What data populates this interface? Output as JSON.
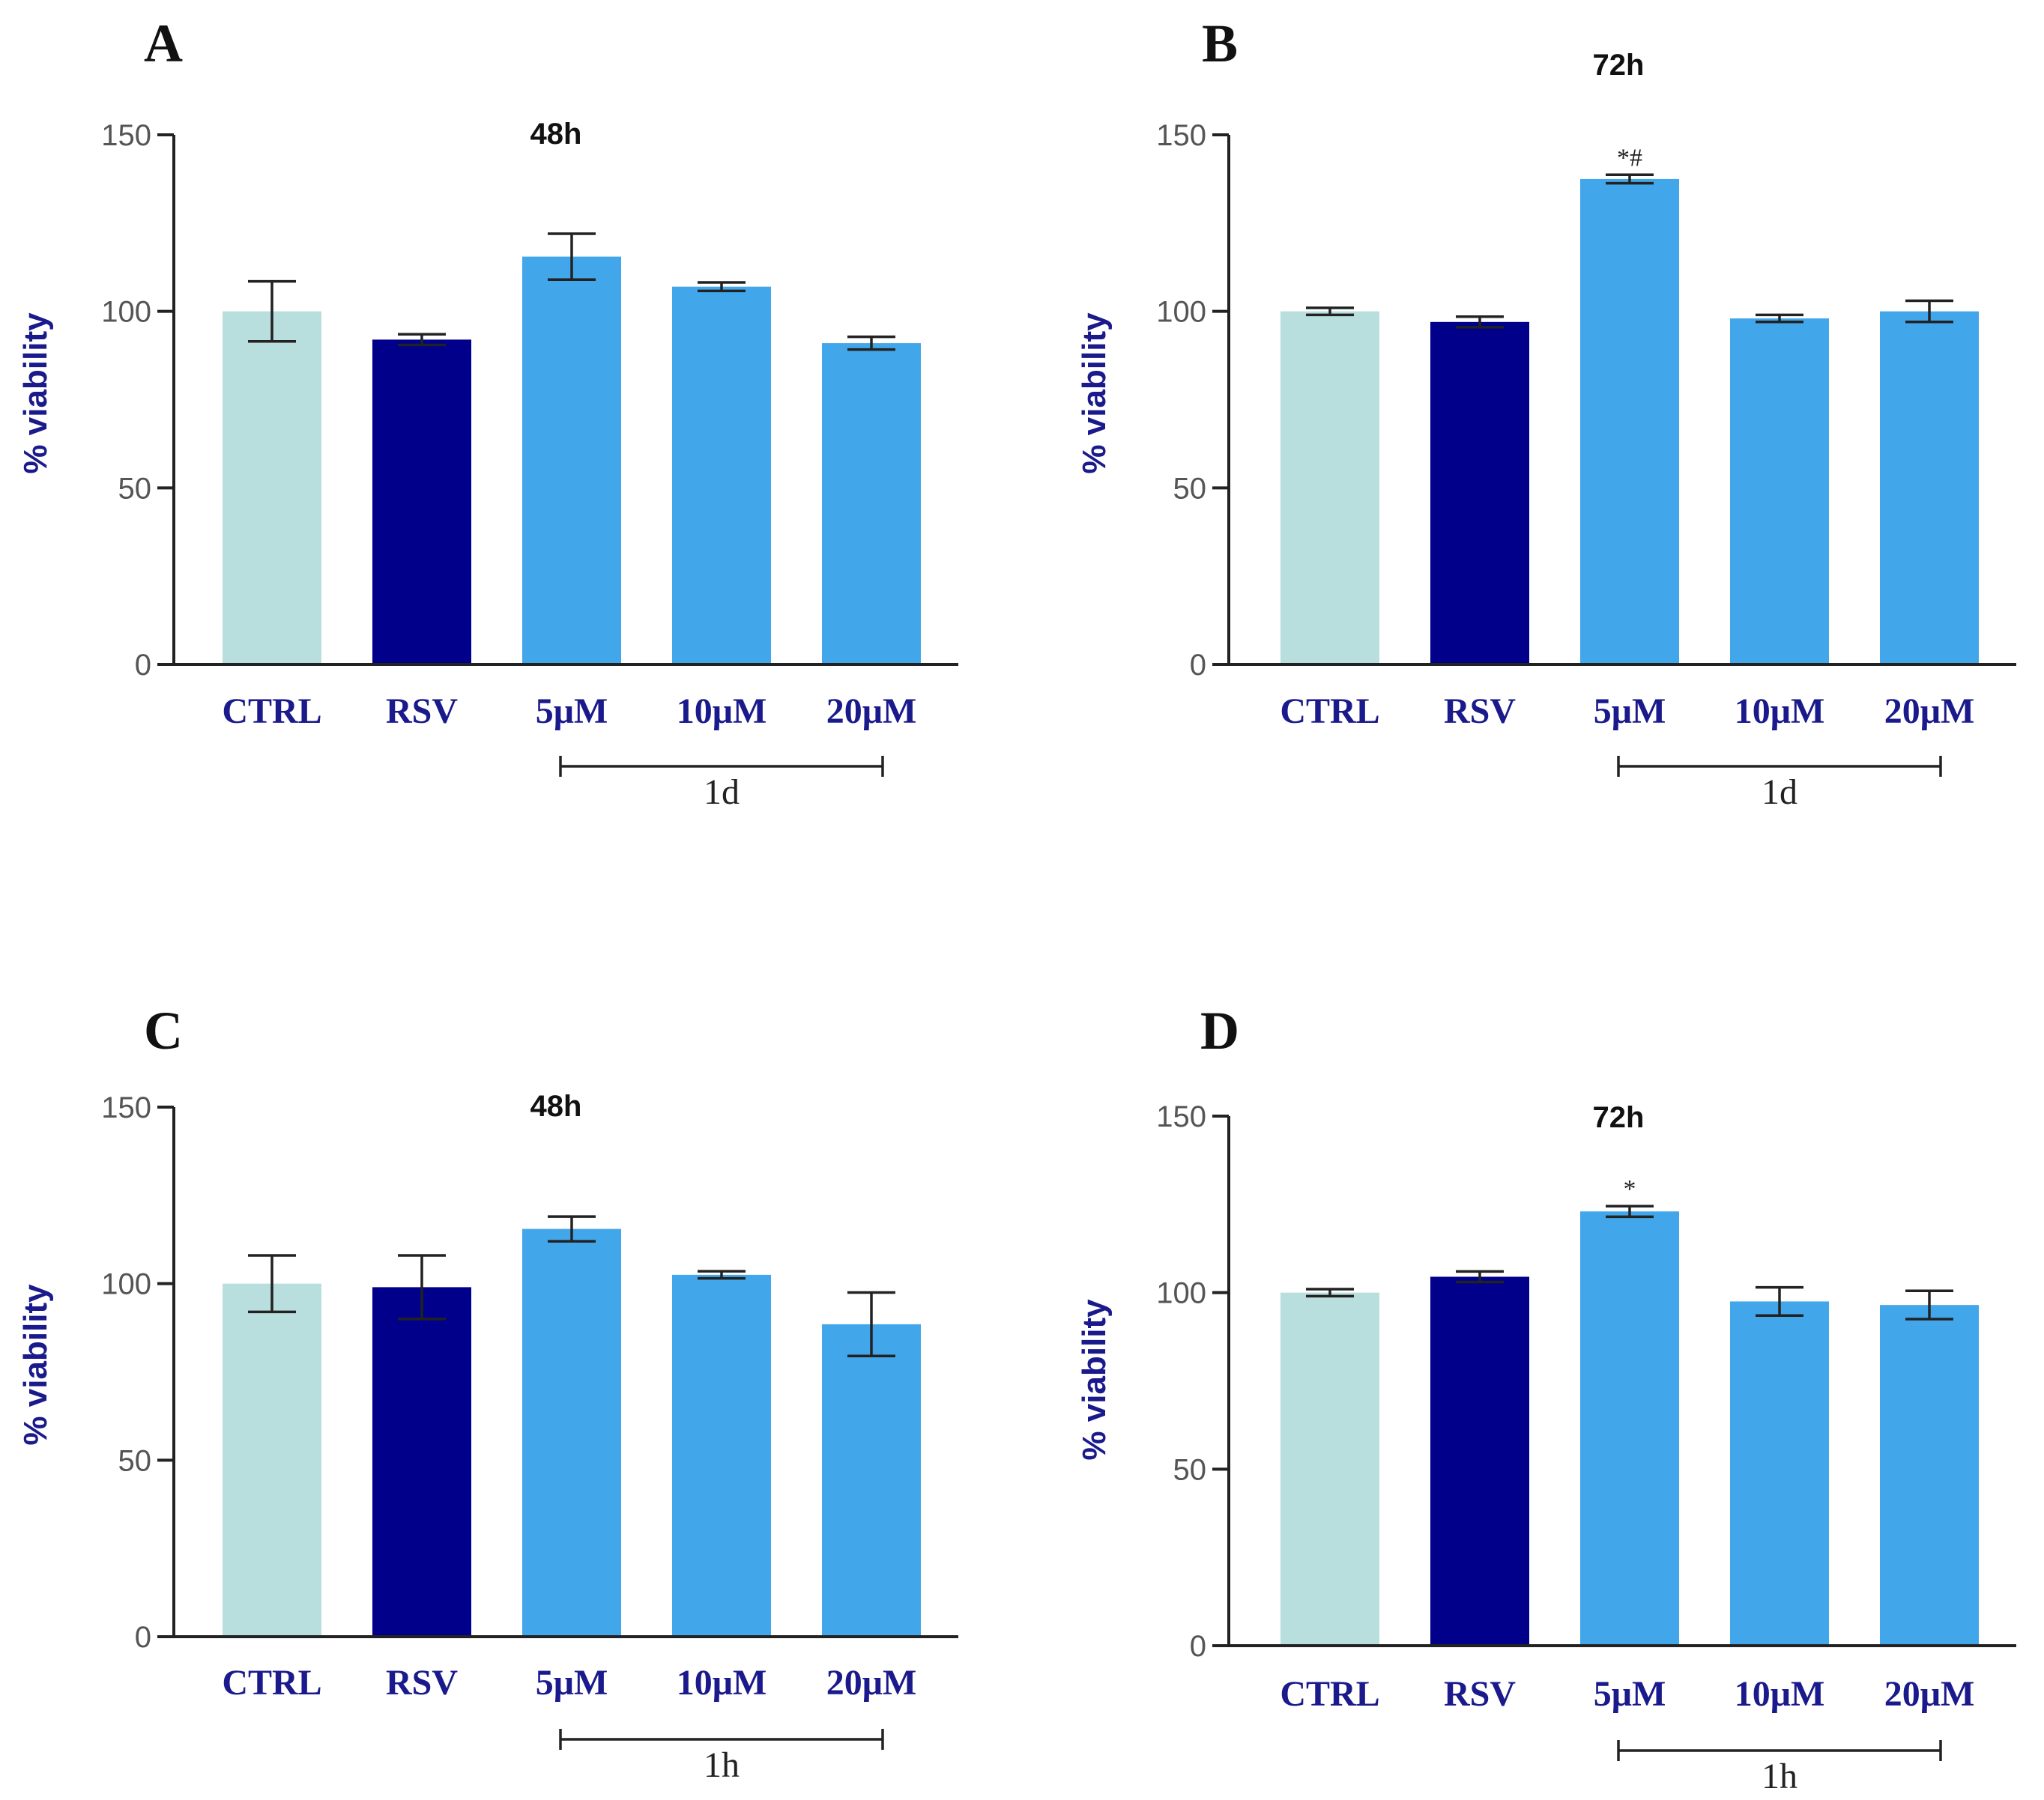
{
  "chart_data": [
    {
      "panel": "A",
      "type": "bar",
      "title": "48h",
      "ylabel": "% viability",
      "xlabel": "",
      "ylim": [
        0,
        150
      ],
      "yticks": [
        0,
        50,
        100,
        150
      ],
      "categories": [
        "CTRL",
        "RSV",
        "5μM",
        "10μM",
        "20μM"
      ],
      "values": [
        100,
        92,
        115.5,
        107,
        91
      ],
      "errors": [
        8.5,
        1.5,
        6.5,
        1.2,
        1.8
      ],
      "colors": [
        "#b8dedd",
        "#00008b",
        "#42a7ea",
        "#42a7ea",
        "#42a7ea"
      ],
      "annotations": [
        "",
        "",
        "",
        "",
        ""
      ],
      "group_bracket": {
        "label": "1d",
        "from": "5μM",
        "to": "20μM"
      }
    },
    {
      "panel": "B",
      "type": "bar",
      "title": "72h",
      "ylabel": "% viability",
      "xlabel": "",
      "ylim": [
        0,
        150
      ],
      "yticks": [
        0,
        50,
        100,
        150
      ],
      "categories": [
        "CTRL",
        "RSV",
        "5μM",
        "10μM",
        "20μM"
      ],
      "values": [
        100,
        97,
        137.5,
        98,
        100
      ],
      "errors": [
        1.0,
        1.5,
        1.2,
        1.0,
        3.0
      ],
      "colors": [
        "#b8dedd",
        "#00008b",
        "#42a7ea",
        "#42a7ea",
        "#42a7ea"
      ],
      "annotations": [
        "",
        "",
        "*#",
        "",
        ""
      ],
      "group_bracket": {
        "label": "1d",
        "from": "5μM",
        "to": "20μM"
      }
    },
    {
      "panel": "C",
      "type": "bar",
      "title": "48h",
      "ylabel": "% viability",
      "xlabel": "",
      "ylim": [
        0,
        150
      ],
      "yticks": [
        0,
        50,
        100,
        150
      ],
      "categories": [
        "CTRL",
        "RSV",
        "5μM",
        "10μM",
        "20μM"
      ],
      "values": [
        100,
        99,
        115.5,
        102.5,
        88.5
      ],
      "errors": [
        8.0,
        9.0,
        3.5,
        1.0,
        9.0
      ],
      "colors": [
        "#b8dedd",
        "#00008b",
        "#42a7ea",
        "#42a7ea",
        "#42a7ea"
      ],
      "annotations": [
        "",
        "",
        "",
        "",
        ""
      ],
      "group_bracket": {
        "label": "1h",
        "from": "5μM",
        "to": "20μM"
      }
    },
    {
      "panel": "D",
      "type": "bar",
      "title": "72h",
      "ylabel": "% viability",
      "xlabel": "",
      "ylim": [
        0,
        150
      ],
      "yticks": [
        0,
        50,
        100,
        150
      ],
      "categories": [
        "CTRL",
        "RSV",
        "5μM",
        "10μM",
        "20μM"
      ],
      "values": [
        100,
        104.5,
        123,
        97.5,
        96.5
      ],
      "errors": [
        1.0,
        1.5,
        1.5,
        4.0,
        4.0
      ],
      "colors": [
        "#b8dedd",
        "#00008b",
        "#42a7ea",
        "#42a7ea",
        "#42a7ea"
      ],
      "annotations": [
        "",
        "",
        "*",
        "",
        ""
      ],
      "group_bracket": {
        "label": "1h",
        "from": "5μM",
        "to": "20μM"
      }
    }
  ]
}
